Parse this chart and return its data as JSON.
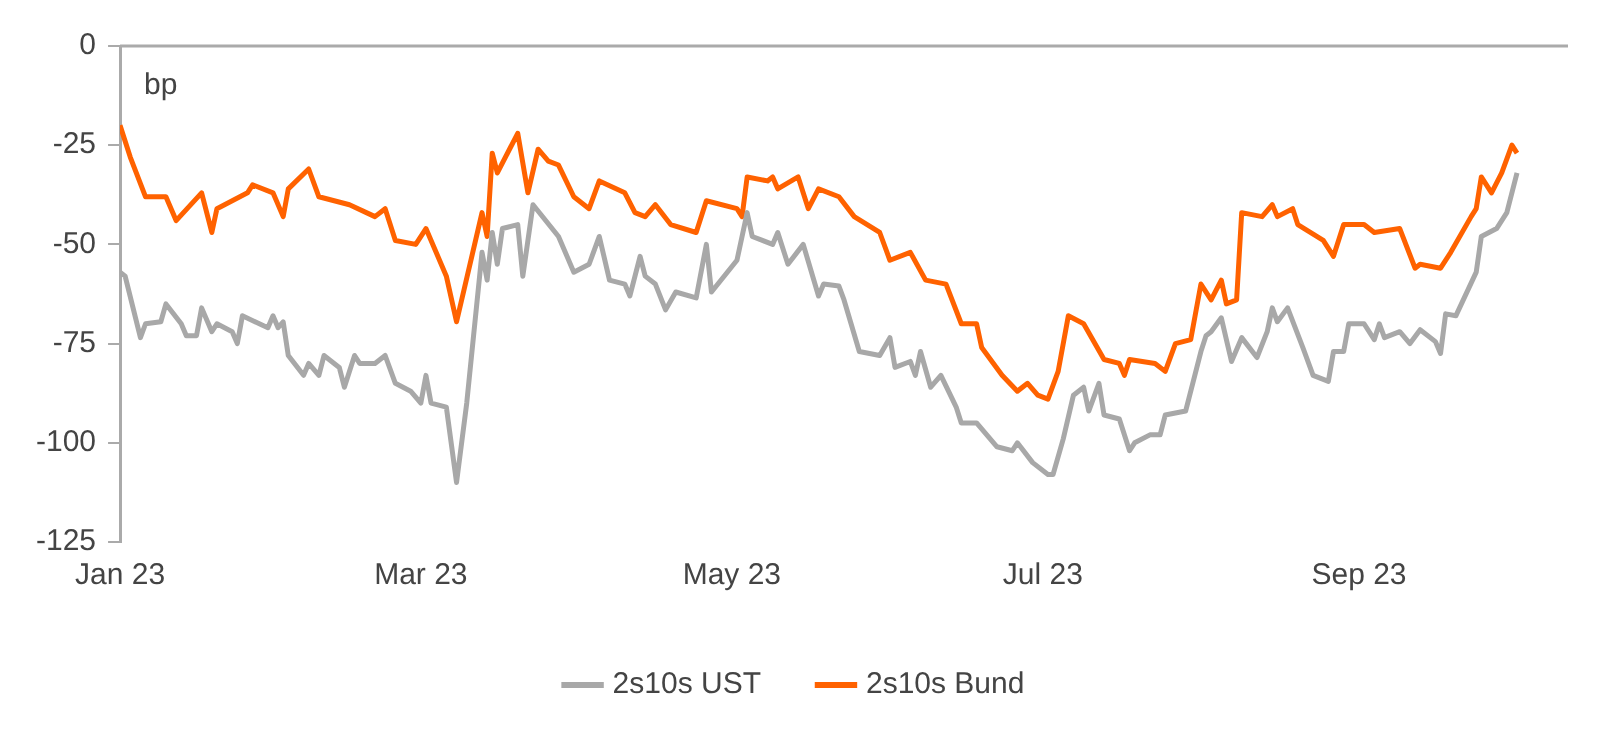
{
  "chart_data": {
    "type": "line",
    "ylabel": "bp",
    "xlim": [
      "2023-01-01",
      "2023-10-12"
    ],
    "xticks": [
      {
        "value": "2023-01-01",
        "label": "Jan 23"
      },
      {
        "value": "2023-03-01",
        "label": "Mar 23"
      },
      {
        "value": "2023-05-01",
        "label": "May 23"
      },
      {
        "value": "2023-07-01",
        "label": "Jul 23"
      },
      {
        "value": "2023-09-01",
        "label": "Sep 23"
      }
    ],
    "ylim": [
      -125,
      0
    ],
    "yticks": [
      -125,
      -100,
      -75,
      -50,
      -25,
      0
    ],
    "grid": false,
    "legend": "bottom",
    "line_style": "solid",
    "marker": "none",
    "ref_lines": [
      {
        "axis": "y",
        "value": 0,
        "label": null,
        "color": "#aaaaaa"
      }
    ],
    "series": [
      {
        "name": "2s10s UST",
        "color": "#a8a8a8",
        "x": [
          "2023-01-01",
          "2023-01-02",
          "2023-01-05",
          "2023-01-06",
          "2023-01-09",
          "2023-01-10",
          "2023-01-13",
          "2023-01-14",
          "2023-01-16",
          "2023-01-17",
          "2023-01-19",
          "2023-01-20",
          "2023-01-23",
          "2023-01-24",
          "2023-01-25",
          "2023-01-30",
          "2023-01-31",
          "2023-02-01",
          "2023-02-02",
          "2023-02-03",
          "2023-02-06",
          "2023-02-07",
          "2023-02-09",
          "2023-02-10",
          "2023-02-13",
          "2023-02-14",
          "2023-02-16",
          "2023-02-17",
          "2023-02-20",
          "2023-02-22",
          "2023-02-24",
          "2023-02-27",
          "2023-03-01",
          "2023-03-02",
          "2023-03-03",
          "2023-03-06",
          "2023-03-08",
          "2023-03-10",
          "2023-03-13",
          "2023-03-14",
          "2023-03-15",
          "2023-03-16",
          "2023-03-17",
          "2023-03-20",
          "2023-03-21",
          "2023-03-23",
          "2023-03-28",
          "2023-03-31",
          "2023-04-03",
          "2023-04-05",
          "2023-04-07",
          "2023-04-10",
          "2023-04-11",
          "2023-04-13",
          "2023-04-14",
          "2023-04-16",
          "2023-04-18",
          "2023-04-20",
          "2023-04-24",
          "2023-04-26",
          "2023-04-27",
          "2023-05-02",
          "2023-05-04",
          "2023-05-05",
          "2023-05-09",
          "2023-05-10",
          "2023-05-12",
          "2023-05-15",
          "2023-05-18",
          "2023-05-19",
          "2023-05-22",
          "2023-05-23",
          "2023-05-26",
          "2023-05-30",
          "2023-06-01",
          "2023-06-02",
          "2023-06-05",
          "2023-06-06",
          "2023-06-07",
          "2023-06-09",
          "2023-06-11",
          "2023-06-14",
          "2023-06-15",
          "2023-06-18",
          "2023-06-22",
          "2023-06-25",
          "2023-06-26",
          "2023-06-29",
          "2023-07-02",
          "2023-07-03",
          "2023-07-05",
          "2023-07-07",
          "2023-07-09",
          "2023-07-10",
          "2023-07-12",
          "2023-07-13",
          "2023-07-16",
          "2023-07-18",
          "2023-07-19",
          "2023-07-22",
          "2023-07-24",
          "2023-07-25",
          "2023-07-29",
          "2023-08-01",
          "2023-08-02",
          "2023-08-03",
          "2023-08-05",
          "2023-08-07",
          "2023-08-09",
          "2023-08-12",
          "2023-08-14",
          "2023-08-15",
          "2023-08-16",
          "2023-08-18",
          "2023-08-21",
          "2023-08-23",
          "2023-08-26",
          "2023-08-27",
          "2023-08-29",
          "2023-08-30",
          "2023-09-02",
          "2023-09-04",
          "2023-09-05",
          "2023-09-06",
          "2023-09-09",
          "2023-09-11",
          "2023-09-13",
          "2023-09-16",
          "2023-09-17",
          "2023-09-18",
          "2023-09-20",
          "2023-09-24",
          "2023-09-25",
          "2023-09-28",
          "2023-09-30",
          "2023-10-02"
        ],
        "values": [
          -57,
          -58,
          -73.5,
          -70,
          -69.5,
          -65,
          -70,
          -73,
          -73,
          -66,
          -72,
          -70,
          -72,
          -75,
          -68,
          -71,
          -68,
          -71,
          -69.5,
          -78,
          -83,
          -80,
          -83,
          -78,
          -81,
          -86,
          -78,
          -80,
          -80,
          -78,
          -85,
          -87,
          -90,
          -83,
          -90,
          -91,
          -110,
          -90,
          -52,
          -59,
          -47,
          -55,
          -46,
          -45,
          -58,
          -40,
          -48,
          -57,
          -55,
          -48,
          -59,
          -60,
          -63,
          -53,
          -58,
          -60,
          -66.5,
          -62,
          -63.5,
          -50,
          -62,
          -54,
          -42,
          -48,
          -50,
          -47,
          -55,
          -50,
          -63,
          -60,
          -60.5,
          -64,
          -77,
          -78,
          -73.5,
          -81,
          -79.5,
          -83,
          -77,
          -86,
          -83,
          -91,
          -95,
          -95,
          -101,
          -102,
          -100,
          -105,
          -108,
          -108,
          -99,
          -88,
          -86,
          -92,
          -85,
          -93,
          -94,
          -102,
          -100,
          -98,
          -98,
          -93,
          -92,
          -77,
          -73,
          -72,
          -68.5,
          -79.5,
          -73.5,
          -78.5,
          -72,
          -66,
          -69.5,
          -66,
          -76,
          -83,
          -84.5,
          -77,
          -77,
          -70,
          -70,
          -74,
          -70,
          -73.5,
          -72,
          -75,
          -71.5,
          -74.5,
          -77.5,
          -67.5,
          -68,
          -57,
          -48,
          -46,
          -42,
          -32
        ]
      },
      {
        "name": "2s10s Bund",
        "color": "#ff6200",
        "x": [
          "2023-01-01",
          "2023-01-03",
          "2023-01-06",
          "2023-01-10",
          "2023-01-12",
          "2023-01-17",
          "2023-01-19",
          "2023-01-20",
          "2023-01-26",
          "2023-01-27",
          "2023-01-31",
          "2023-02-02",
          "2023-02-03",
          "2023-02-07",
          "2023-02-09",
          "2023-02-15",
          "2023-02-20",
          "2023-02-22",
          "2023-02-24",
          "2023-02-28",
          "2023-03-02",
          "2023-03-06",
          "2023-03-08",
          "2023-03-13",
          "2023-03-14",
          "2023-03-15",
          "2023-03-16",
          "2023-03-20",
          "2023-03-22",
          "2023-03-24",
          "2023-03-26",
          "2023-03-28",
          "2023-03-31",
          "2023-04-03",
          "2023-04-05",
          "2023-04-10",
          "2023-04-12",
          "2023-04-14",
          "2023-04-16",
          "2023-04-19",
          "2023-04-24",
          "2023-04-26",
          "2023-05-02",
          "2023-05-03",
          "2023-05-04",
          "2023-05-08",
          "2023-05-09",
          "2023-05-10",
          "2023-05-14",
          "2023-05-16",
          "2023-05-18",
          "2023-05-22",
          "2023-05-25",
          "2023-05-30",
          "2023-06-01",
          "2023-06-05",
          "2023-06-08",
          "2023-06-12",
          "2023-06-15",
          "2023-06-18",
          "2023-06-19",
          "2023-06-23",
          "2023-06-26",
          "2023-06-28",
          "2023-06-30",
          "2023-07-02",
          "2023-07-04",
          "2023-07-06",
          "2023-07-09",
          "2023-07-13",
          "2023-07-16",
          "2023-07-17",
          "2023-07-18",
          "2023-07-23",
          "2023-07-25",
          "2023-07-27",
          "2023-07-30",
          "2023-08-01",
          "2023-08-03",
          "2023-08-05",
          "2023-08-06",
          "2023-08-08",
          "2023-08-09",
          "2023-08-13",
          "2023-08-15",
          "2023-08-16",
          "2023-08-19",
          "2023-08-20",
          "2023-08-25",
          "2023-08-27",
          "2023-08-29",
          "2023-09-02",
          "2023-09-04",
          "2023-09-09",
          "2023-09-12",
          "2023-09-13",
          "2023-09-17",
          "2023-09-19",
          "2023-09-23",
          "2023-09-24",
          "2023-09-25",
          "2023-09-27",
          "2023-09-29",
          "2023-10-01",
          "2023-10-02"
        ],
        "values": [
          -20,
          -28,
          -38,
          -38,
          -44,
          -37,
          -47,
          -41,
          -37,
          -35,
          -37,
          -43,
          -36,
          -31,
          -38,
          -40,
          -43,
          -41,
          -49,
          -50,
          -46,
          -58,
          -69.5,
          -42,
          -48,
          -27,
          -32,
          -22,
          -37,
          -26,
          -29,
          -30,
          -38,
          -41,
          -34,
          -37,
          -42,
          -43,
          -40,
          -45,
          -47,
          -39,
          -41,
          -43,
          -33,
          -34,
          -33,
          -36,
          -33,
          -41,
          -36,
          -38,
          -43,
          -47,
          -54,
          -52,
          -59,
          -60,
          -70,
          -70,
          -76,
          -83,
          -87,
          -85,
          -88,
          -89,
          -82,
          -68,
          -70,
          -79,
          -80,
          -83,
          -79,
          -80,
          -82,
          -75,
          -74,
          -60,
          -64,
          -59,
          -65,
          -64,
          -42,
          -43,
          -40,
          -43,
          -41,
          -45,
          -49,
          -53,
          -45,
          -45,
          -47,
          -46,
          -56,
          -55,
          -56,
          -52,
          -43,
          -41,
          -33,
          -37,
          -32,
          -25,
          -27
        ]
      }
    ]
  }
}
